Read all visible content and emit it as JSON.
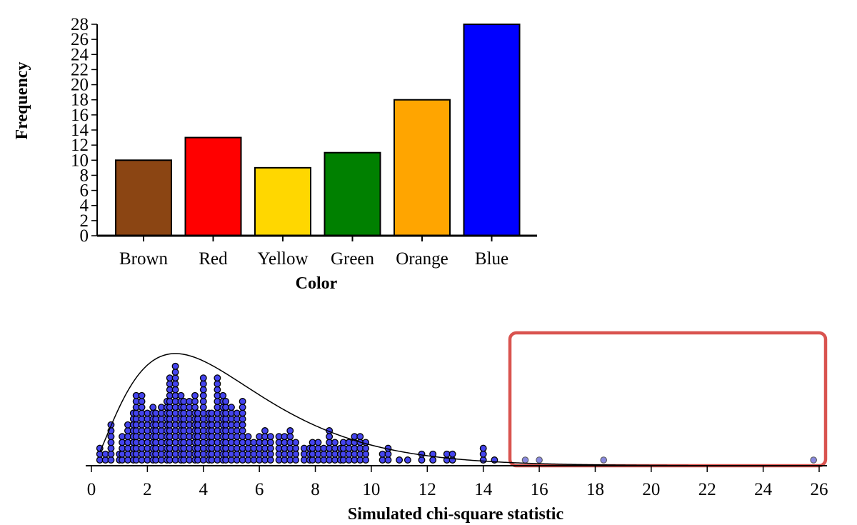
{
  "chart_data": [
    {
      "type": "bar",
      "categories": [
        "Brown",
        "Red",
        "Yellow",
        "Green",
        "Orange",
        "Blue"
      ],
      "values": [
        10,
        13,
        9,
        11,
        18,
        28
      ],
      "colors": [
        "#8B4513",
        "#FF0000",
        "#FFD700",
        "#008000",
        "#FFA500",
        "#0000FF"
      ],
      "xlabel": "Color",
      "ylabel": "Frequency",
      "ylim": [
        0,
        28
      ],
      "yticks": [
        0,
        2,
        4,
        6,
        8,
        10,
        12,
        14,
        16,
        18,
        20,
        22,
        24,
        26,
        28
      ],
      "grid": false
    },
    {
      "type": "scatter",
      "subtype": "dotplot",
      "xlabel": "Simulated chi-square statistic",
      "xlim": [
        0,
        26.5
      ],
      "xticks": [
        0,
        2,
        4,
        6,
        8,
        10,
        12,
        14,
        16,
        18,
        20,
        22,
        24,
        26
      ],
      "dot_color": "#4444EE",
      "grid": false,
      "bins": [
        {
          "x": 0.3,
          "count": 3
        },
        {
          "x": 0.5,
          "count": 2
        },
        {
          "x": 0.7,
          "count": 7
        },
        {
          "x": 1.0,
          "count": 2
        },
        {
          "x": 1.1,
          "count": 5
        },
        {
          "x": 1.3,
          "count": 7
        },
        {
          "x": 1.5,
          "count": 9
        },
        {
          "x": 1.6,
          "count": 12
        },
        {
          "x": 1.8,
          "count": 12
        },
        {
          "x": 2.0,
          "count": 9
        },
        {
          "x": 2.2,
          "count": 10
        },
        {
          "x": 2.3,
          "count": 9
        },
        {
          "x": 2.5,
          "count": 10
        },
        {
          "x": 2.7,
          "count": 11
        },
        {
          "x": 2.8,
          "count": 15
        },
        {
          "x": 3.0,
          "count": 17
        },
        {
          "x": 3.2,
          "count": 12
        },
        {
          "x": 3.3,
          "count": 11
        },
        {
          "x": 3.5,
          "count": 11
        },
        {
          "x": 3.7,
          "count": 12
        },
        {
          "x": 3.8,
          "count": 9
        },
        {
          "x": 4.0,
          "count": 15
        },
        {
          "x": 4.2,
          "count": 9
        },
        {
          "x": 4.3,
          "count": 9
        },
        {
          "x": 4.5,
          "count": 15
        },
        {
          "x": 4.7,
          "count": 12
        },
        {
          "x": 4.8,
          "count": 11
        },
        {
          "x": 5.0,
          "count": 10
        },
        {
          "x": 5.2,
          "count": 9
        },
        {
          "x": 5.4,
          "count": 11
        },
        {
          "x": 5.6,
          "count": 5
        },
        {
          "x": 5.8,
          "count": 4
        },
        {
          "x": 6.0,
          "count": 5
        },
        {
          "x": 6.2,
          "count": 6
        },
        {
          "x": 6.4,
          "count": 5
        },
        {
          "x": 6.7,
          "count": 5
        },
        {
          "x": 6.9,
          "count": 5
        },
        {
          "x": 7.1,
          "count": 6
        },
        {
          "x": 7.3,
          "count": 4
        },
        {
          "x": 7.6,
          "count": 3
        },
        {
          "x": 7.8,
          "count": 3
        },
        {
          "x": 7.9,
          "count": 4
        },
        {
          "x": 8.1,
          "count": 4
        },
        {
          "x": 8.3,
          "count": 3
        },
        {
          "x": 8.5,
          "count": 6
        },
        {
          "x": 8.7,
          "count": 4
        },
        {
          "x": 8.9,
          "count": 3
        },
        {
          "x": 9.0,
          "count": 4
        },
        {
          "x": 9.2,
          "count": 4
        },
        {
          "x": 9.4,
          "count": 5
        },
        {
          "x": 9.6,
          "count": 5
        },
        {
          "x": 9.8,
          "count": 4
        },
        {
          "x": 10.4,
          "count": 2
        },
        {
          "x": 10.6,
          "count": 3
        },
        {
          "x": 11.0,
          "count": 1
        },
        {
          "x": 11.3,
          "count": 1
        },
        {
          "x": 11.8,
          "count": 2
        },
        {
          "x": 12.2,
          "count": 2
        },
        {
          "x": 12.7,
          "count": 2
        },
        {
          "x": 12.9,
          "count": 2
        },
        {
          "x": 14.0,
          "count": 3
        },
        {
          "x": 14.4,
          "count": 1
        }
      ],
      "highlighted_points": [
        15.5,
        16.0,
        18.3,
        25.8
      ],
      "highlighted_color": "#8888DD",
      "curve": {
        "type": "chi-square density",
        "df": 5
      },
      "highlight_box": {
        "x_from": 15.0,
        "x_to": 26.3,
        "color": "#D9534F"
      }
    }
  ]
}
